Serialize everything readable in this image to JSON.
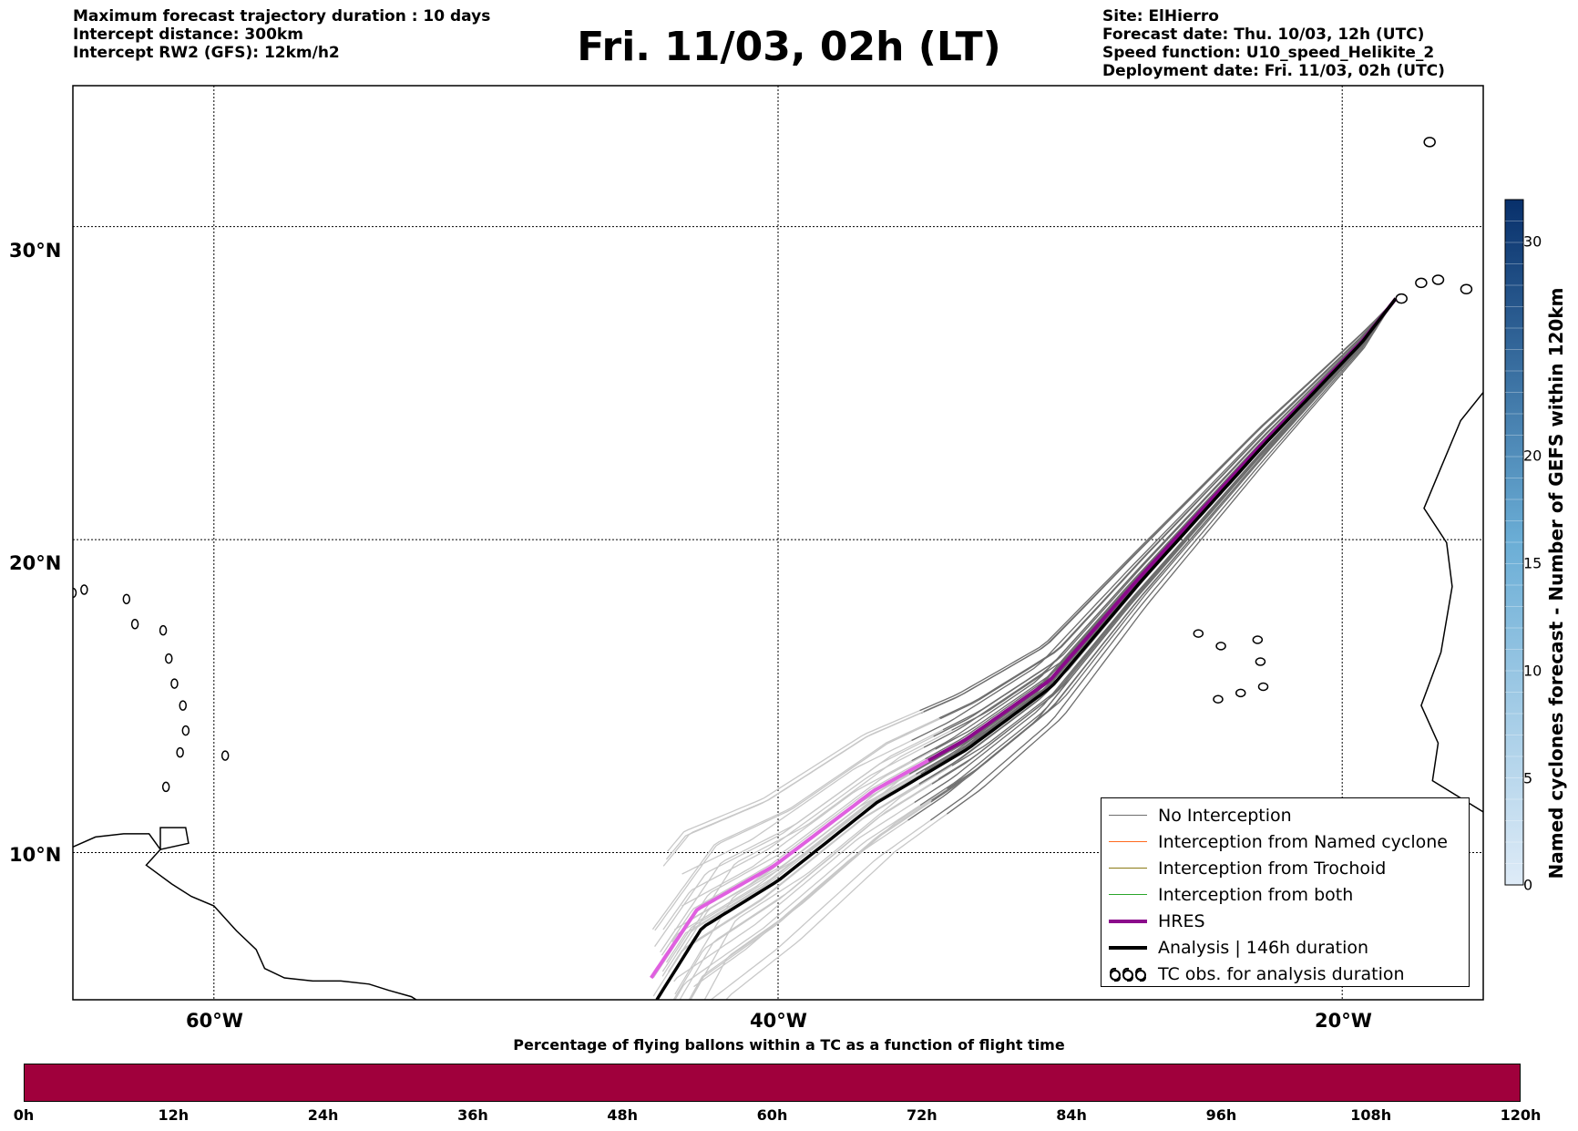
{
  "header": {
    "left_lines": [
      "Maximum forecast trajectory duration : 10 days",
      "Intercept distance: 300km",
      "Intercept RW2 (GFS):  12km/h2"
    ],
    "title": "Fri. 11/03, 02h (LT)",
    "right_lines": [
      "Site: ElHierro",
      "Forecast date: Thu. 10/03, 12h (UTC)",
      "Speed function: U10_speed_Helikite_2",
      "Deployment date: Fri. 11/03, 02h (UTC)"
    ]
  },
  "map": {
    "lat_labels": [
      "30°N",
      "20°N",
      "10°N"
    ],
    "lon_labels": [
      "60°W",
      "40°W",
      "20°W"
    ],
    "lon_range_deg": [
      -65,
      -15
    ],
    "lat_range_deg": [
      5.3,
      34.5
    ],
    "origin_lonlat": [
      -18.1,
      27.7
    ],
    "colors": {
      "no_interception": "#6e6e6e",
      "no_interception_early": "#c8c8c8",
      "named_cyclone": "#ff6a1f",
      "trochoid": "#8b7a14",
      "both": "#2aa52a",
      "hres": "#8b0a8b",
      "hres_early": "#e060e0",
      "analysis": "#000000"
    }
  },
  "legend": {
    "items": [
      {
        "label": "No Interception",
        "icon": "line-gray"
      },
      {
        "label": "Interception from Named cyclone",
        "icon": "line-orange"
      },
      {
        "label": "Interception from Trochoid",
        "icon": "line-olive"
      },
      {
        "label": "Interception from both",
        "icon": "line-green"
      },
      {
        "label": "HRES",
        "icon": "line-purple-thick"
      },
      {
        "label": "Analysis | 146h duration",
        "icon": "line-black-thick"
      },
      {
        "label": "TC obs. for analysis duration",
        "icon": "cyclone-symbols-icon"
      }
    ]
  },
  "right_colorbar": {
    "label": "Named cyclones forecast - Number of GEFS within 120km",
    "ticks": [
      "0",
      "5",
      "10",
      "15",
      "20",
      "30"
    ],
    "color_low": "#deebf7",
    "color_high": "#08306b"
  },
  "bottom_colorbar": {
    "title": "Percentage of flying ballons within a TC as a function of flight time",
    "ticks": [
      "0h",
      "12h",
      "24h",
      "36h",
      "48h",
      "60h",
      "72h",
      "84h",
      "96h",
      "108h",
      "120h"
    ],
    "fill_color": "#a0003c"
  }
}
